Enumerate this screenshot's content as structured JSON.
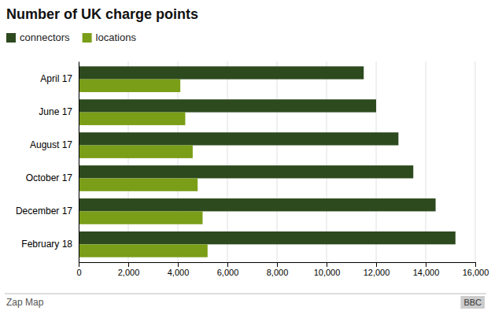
{
  "chart_data": {
    "type": "bar",
    "orientation": "horizontal",
    "title": "Number of UK charge points",
    "categories": [
      "April 17",
      "June 17",
      "August 17",
      "October 17",
      "December 17",
      "February 18"
    ],
    "series": [
      {
        "name": "connectors",
        "color": "#2d4a1e",
        "values": [
          11500,
          12000,
          12900,
          13500,
          14400,
          15200
        ]
      },
      {
        "name": "locations",
        "color": "#7a9e18",
        "values": [
          4100,
          4300,
          4600,
          4800,
          5000,
          5200
        ]
      }
    ],
    "xlim": [
      0,
      16000
    ],
    "xticks": [
      0,
      {
        "value": 2000,
        "label": "2,000"
      },
      {
        "value": 4000,
        "label": "4,000"
      },
      {
        "value": 6000,
        "label": "6,000"
      },
      {
        "value": 8000,
        "label": "8,000"
      },
      {
        "value": 10000,
        "label": "10,000"
      },
      {
        "value": 12000,
        "label": "12,000"
      },
      {
        "value": 14000,
        "label": "14,000"
      },
      {
        "value": 16000,
        "label": "16,000"
      }
    ],
    "grid": true,
    "legend": "top-left",
    "annotations": [
      "Zap Map",
      "BBC"
    ]
  }
}
